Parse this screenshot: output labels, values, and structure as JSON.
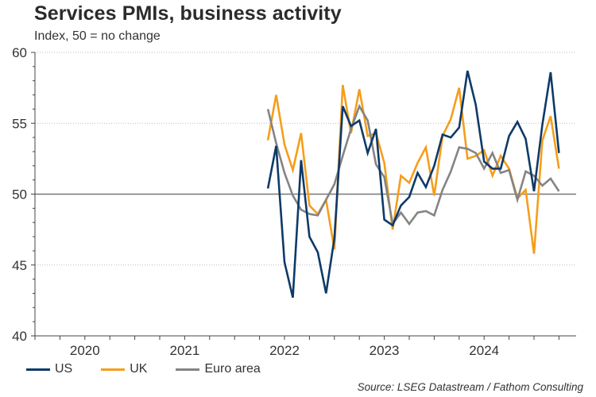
{
  "chart_data": {
    "type": "line",
    "title": "Services PMIs, business activity",
    "subtitle": "Index, 50 = no change",
    "xlabel": "",
    "ylabel": "",
    "ylim": [
      40,
      60
    ],
    "yticks": [
      "40",
      "45",
      "50",
      "55",
      "60"
    ],
    "reference_line": 50,
    "xticks": [
      "2020",
      "2021",
      "2022",
      "2023",
      "2024"
    ],
    "x_range_months": {
      "start_year": 2020,
      "start_month": 1,
      "months": 65
    },
    "series_start": {
      "year": 2022,
      "month": 5
    },
    "grid": "horizontal dotted",
    "legend_position": "bottom-left",
    "series": [
      {
        "name": "US",
        "color": "#0e3a68",
        "values": [
          50.4,
          53.4,
          45.2,
          42.7,
          52.4,
          47.0,
          45.9,
          43.0,
          46.9,
          56.2,
          54.8,
          55.2,
          52.9,
          54.6,
          48.2,
          47.8,
          49.2,
          49.8,
          51.5,
          50.5,
          52.0,
          54.2,
          54.0,
          54.7,
          58.7,
          56.3,
          52.3,
          51.8,
          51.8,
          54.1,
          55.1,
          53.9,
          50.2,
          54.9,
          58.6,
          52.9
        ]
      },
      {
        "name": "UK",
        "color": "#f59e1b",
        "values": [
          53.8,
          57.0,
          53.5,
          51.7,
          54.3,
          49.2,
          48.6,
          49.6,
          46.1,
          57.7,
          54.3,
          57.4,
          54.1,
          54.3,
          52.2,
          47.5,
          51.3,
          50.8,
          52.2,
          53.3,
          49.9,
          54.1,
          55.3,
          57.5,
          52.5,
          52.7,
          53.1,
          51.3,
          52.7,
          51.8,
          49.7,
          50.3,
          45.8,
          53.8,
          55.5,
          51.8
        ]
      },
      {
        "name": "Euro area",
        "color": "#848484",
        "values": [
          56.0,
          53.6,
          51.5,
          49.9,
          48.9,
          48.6,
          48.5,
          49.6,
          50.7,
          52.7,
          54.6,
          56.2,
          55.2,
          52.1,
          51.2,
          47.9,
          48.7,
          47.9,
          48.7,
          48.8,
          48.5,
          50.3,
          51.6,
          53.3,
          53.2,
          52.9,
          51.8,
          52.9,
          51.5,
          51.7,
          49.6,
          51.6,
          51.3,
          50.6,
          51.1,
          50.2
        ]
      }
    ],
    "source": "Source: LSEG Datastream / Fathom Consulting"
  },
  "legend": [
    {
      "label": "US",
      "color": "#0e3a68"
    },
    {
      "label": "UK",
      "color": "#f59e1b"
    },
    {
      "label": "Euro area",
      "color": "#848484"
    }
  ]
}
